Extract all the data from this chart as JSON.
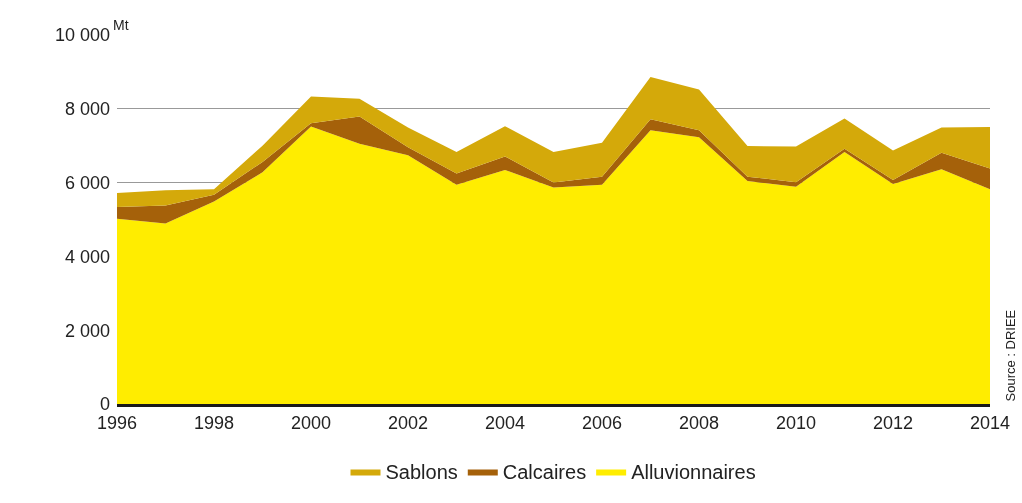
{
  "chart_data": {
    "type": "area",
    "stacked": true,
    "ylabel": "Mt",
    "x": [
      1996,
      1997,
      1998,
      1999,
      2000,
      2001,
      2002,
      2003,
      2004,
      2005,
      2006,
      2007,
      2008,
      2009,
      2010,
      2011,
      2012,
      2013,
      2014
    ],
    "series": [
      {
        "name": "Alluvionnaires",
        "color": "#ffed00",
        "values": [
          5020,
          4890,
          5490,
          6280,
          7520,
          7050,
          6740,
          5940,
          6340,
          5870,
          5940,
          7420,
          7230,
          6040,
          5890,
          6830,
          5960,
          6360,
          5820
        ]
      },
      {
        "name": "Calcaires",
        "color": "#a5610a",
        "values": [
          320,
          490,
          180,
          280,
          90,
          740,
          220,
          310,
          370,
          130,
          220,
          300,
          190,
          120,
          120,
          90,
          110,
          450,
          560
        ]
      },
      {
        "name": "Sablons",
        "color": "#d4a90a",
        "values": [
          380,
          410,
          150,
          440,
          720,
          480,
          530,
          580,
          820,
          830,
          920,
          1140,
          1100,
          830,
          970,
          820,
          800,
          680,
          1130
        ]
      }
    ],
    "xlim": [
      1996,
      2014
    ],
    "xticks": [
      1996,
      1998,
      2000,
      2002,
      2004,
      2006,
      2008,
      2010,
      2012,
      2014
    ],
    "ylim": [
      0,
      10000
    ],
    "yticks": [
      {
        "value": 0,
        "label": "0"
      },
      {
        "value": 2000,
        "label": "2 000"
      },
      {
        "value": 4000,
        "label": "4 000"
      },
      {
        "value": 6000,
        "label": "6 000"
      },
      {
        "value": 8000,
        "label": "8 000"
      },
      {
        "value": 10000,
        "label": "10 000"
      }
    ],
    "grid": "y",
    "legend": "bottom",
    "annotations": [
      "Source : DRIEE"
    ]
  }
}
